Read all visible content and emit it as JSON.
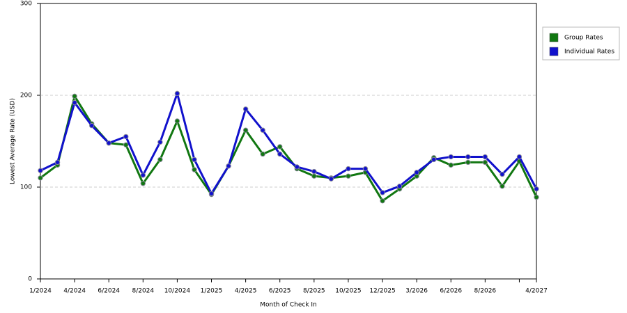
{
  "chart_data": {
    "type": "line",
    "x_label": "Month of Check In",
    "y_label": "Lowest Average Rate (USD)",
    "categories": [
      "1/2024",
      null,
      "4/2024",
      null,
      "6/2024",
      null,
      "8/2024",
      null,
      "10/2024",
      null,
      "1/2025",
      null,
      "4/2025",
      null,
      "6/2025",
      null,
      "8/2025",
      null,
      "10/2025",
      null,
      "12/2025",
      null,
      "3/2026",
      null,
      "6/2026",
      null,
      "8/2026",
      null,
      null,
      "4/2027"
    ],
    "series": [
      {
        "name": "Group Rates",
        "color": "#117711",
        "values": [
          110,
          124,
          199,
          169,
          148,
          146,
          104,
          130,
          172,
          119,
          92,
          123,
          162,
          136,
          144,
          120,
          112,
          110,
          112,
          116,
          85,
          98,
          112,
          132,
          124,
          127,
          127,
          101,
          128,
          89
        ]
      },
      {
        "name": "Individual Rates",
        "color": "#1111cc",
        "values": [
          118,
          127,
          192,
          167,
          148,
          155,
          113,
          149,
          202,
          130,
          93,
          123,
          185,
          162,
          136,
          122,
          117,
          109,
          120,
          120,
          94,
          101,
          116,
          130,
          133,
          133,
          133,
          114,
          133,
          98
        ]
      }
    ],
    "ylim": [
      0,
      300
    ],
    "yticks": [
      0,
      100,
      200,
      300
    ],
    "grid": true
  }
}
